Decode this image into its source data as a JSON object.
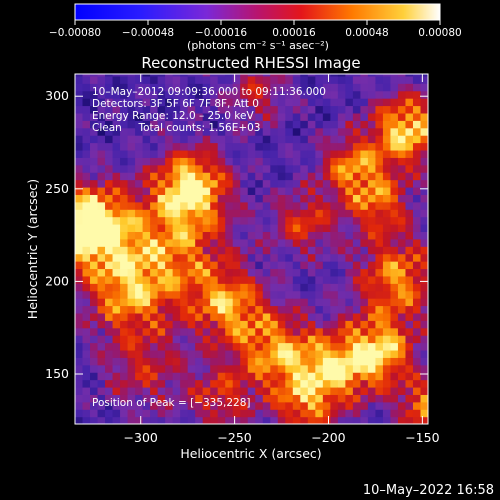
{
  "chart_data": {
    "type": "heatmap",
    "title": "Reconstructed RHESSI Image",
    "xlabel": "Heliocentric X (arcsec)",
    "ylabel": "Heliocentric Y (arcsec)",
    "xlim": [
      -335,
      -147
    ],
    "ylim": [
      123,
      312
    ],
    "x_ticks": [
      -300,
      -250,
      -200,
      -150
    ],
    "x_tick_labels": [
      "−300",
      "−250",
      "−200",
      "−150"
    ],
    "y_ticks": [
      150,
      200,
      250,
      300
    ],
    "y_tick_labels": [
      "150",
      "200",
      "250",
      "300"
    ],
    "colorbar": {
      "range": [
        -0.0008,
        0.0008
      ],
      "ticks": [
        -0.0008,
        -0.00048,
        -0.00016,
        0.00016,
        0.00048,
        0.0008
      ],
      "tick_labels": [
        "−0.00080",
        "−0.00048",
        "−0.00016",
        "0.00016",
        "0.00048",
        "0.00080"
      ],
      "units": "(photons cm⁻² s⁻¹ asec⁻²)",
      "colormap": "rainbow"
    },
    "annotations": {
      "time_range": "10–May–2012 09:09:36.000 to 09:11:36.000",
      "detectors": "Detectors: 3F 5F 6F 7F 8F, Att 0",
      "energy": "Energy Range: 12.0 – 25.0 keV",
      "clean": "Clean     Total counts: 1.56E+03",
      "peak": "Position of Peak = [−335,228]"
    },
    "peak": [
      -335,
      228
    ]
  },
  "footer": {
    "timestamp": "10–May–2022 16:58"
  }
}
